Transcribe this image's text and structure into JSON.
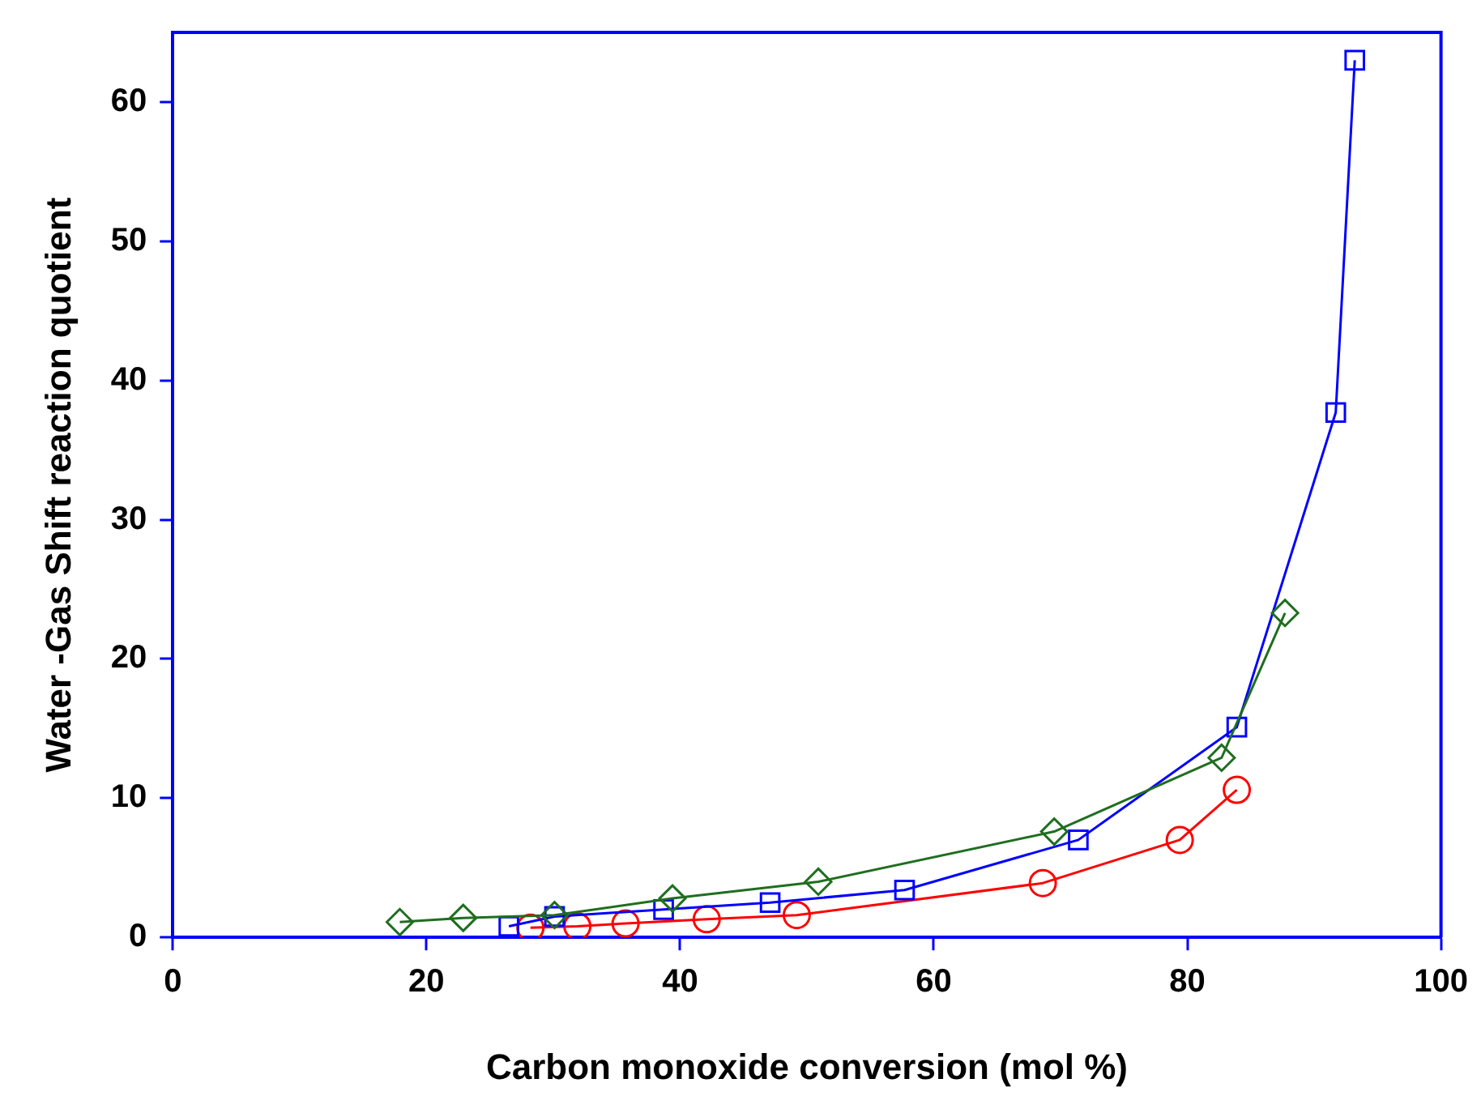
{
  "chart_data": {
    "type": "line",
    "xlabel": "Carbon monoxide conversion (mol %)",
    "ylabel": "Water -Gas Shift reaction quotient",
    "xlim": [
      0,
      100
    ],
    "xticks": [
      0,
      20,
      40,
      60,
      80,
      100
    ],
    "ylim": [
      0,
      65
    ],
    "yticks": [
      0,
      10,
      20,
      30,
      40,
      50,
      60
    ],
    "grid": false,
    "legend": false,
    "line_style": "solid",
    "series": [
      {
        "color": "#1f6e1f",
        "marker": "diamond",
        "x": [
          17.9,
          22.9,
          30.1,
          39.4,
          50.9,
          69.5,
          82.7,
          87.7
        ],
        "values": [
          1.1,
          1.4,
          1.6,
          2.8,
          4.0,
          7.6,
          12.9,
          23.3
        ]
      },
      {
        "color": "#0000ff",
        "marker": "square",
        "x": [
          26.5,
          30.1,
          38.7,
          47.1,
          57.7,
          71.4,
          83.9,
          91.7,
          93.2
        ],
        "values": [
          0.8,
          1.5,
          2.0,
          2.5,
          3.4,
          7.0,
          15.1,
          37.7,
          63.0
        ]
      },
      {
        "color": "#ff0000",
        "marker": "circle",
        "x": [
          28.2,
          31.9,
          35.7,
          42.1,
          49.2,
          68.6,
          79.4,
          83.9
        ],
        "values": [
          0.7,
          0.8,
          1.0,
          1.3,
          1.6,
          3.9,
          7.0,
          10.6
        ]
      }
    ]
  }
}
